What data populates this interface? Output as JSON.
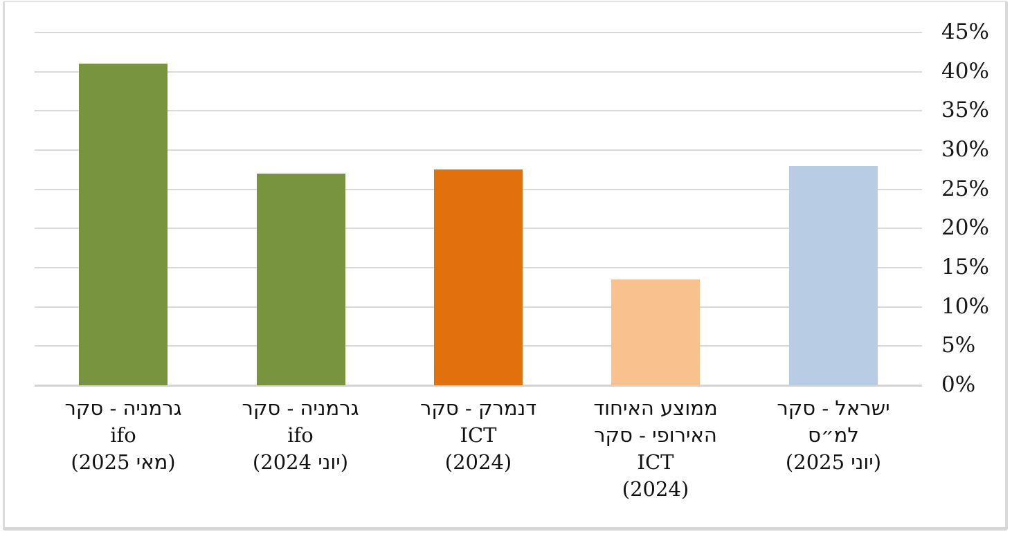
{
  "chart_data": {
    "type": "bar",
    "title": "",
    "xlabel": "",
    "ylabel": "",
    "rtl": true,
    "grid": true,
    "legend": "none",
    "background": "#ffffff",
    "frame_border_color": "#d9d9d9",
    "gridline_color": "#d9d9d9",
    "axis_line_color": "#d3d3d3",
    "text_color": "#161616",
    "categories": [
      {
        "text": "גרמניה - סקר ifo (מאי 2025)",
        "lines": [
          "גרמניה - סקר",
          "ifo",
          "(מאי 2025)"
        ]
      },
      {
        "text": "גרמניה - סקר ifo (יוני 2024)",
        "lines": [
          "גרמניה - סקר",
          "ifo",
          "(יוני 2024)"
        ]
      },
      {
        "text": "דנמרק - סקר ICT (2024)",
        "lines": [
          "דנמרק - סקר",
          "ICT",
          "(2024)"
        ]
      },
      {
        "text": "ממוצע האיחוד האירופי - סקר ICT (2024)",
        "lines": [
          "ממוצע האיחוד",
          "האירופי - סקר",
          "ICT",
          "(2024)"
        ]
      },
      {
        "text": "ישראל - סקר למ״ס (יוני 2025)",
        "lines": [
          "ישראל - סקר",
          "למ״ס",
          "(יוני 2025)"
        ]
      }
    ],
    "values": [
      41,
      27,
      27.5,
      13.5,
      28
    ],
    "value_unit": "%",
    "bar_colors": [
      "#79943e",
      "#79943e",
      "#e2700c",
      "#f8c18e",
      "#b8cce3"
    ],
    "y_axis": {
      "side": "right",
      "min": 0,
      "max": 45,
      "step": 5,
      "tick_labels_top_to_bottom": [
        "45%",
        "40%",
        "35%",
        "30%",
        "25%",
        "20%",
        "15%",
        "10%",
        "5%",
        "0%"
      ]
    }
  }
}
